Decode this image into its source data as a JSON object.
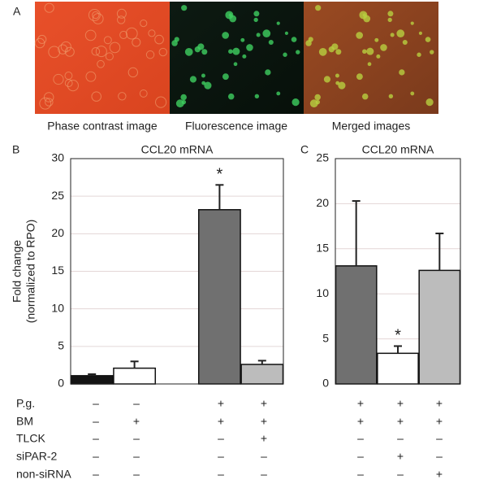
{
  "panel_a": {
    "label": "A",
    "captions": [
      "Phase contrast image",
      "Fluorescence image",
      "Merged images"
    ]
  },
  "condition_labels": [
    "P.g.",
    "BM",
    "TLCK",
    "siPAR-2",
    "non-siRNA"
  ],
  "chart_data": [
    {
      "type": "bar",
      "panel": "B",
      "title": "CCL20 mRNA",
      "ylabel": [
        "Fold change",
        "(normalized to RPO)"
      ],
      "categories": [
        null,
        null,
        null,
        null
      ],
      "values": [
        1.1,
        2.1,
        23.2,
        2.6
      ],
      "errors": [
        0.2,
        0.9,
        3.3,
        0.5
      ],
      "colors": [
        "#141414",
        "#ffffff",
        "#707070",
        "#bcbcbc"
      ],
      "ylim": [
        0,
        30
      ],
      "yticks": [
        0,
        5,
        10,
        15,
        20,
        25,
        30
      ],
      "grid": true,
      "annotations": [
        {
          "text": "*",
          "index": 2
        }
      ],
      "conditions": [
        [
          "–",
          "–",
          "+",
          "+"
        ],
        [
          "–",
          "+",
          "+",
          "+"
        ],
        [
          "–",
          "–",
          "–",
          "+"
        ],
        [
          "–",
          "–",
          "–",
          "–"
        ],
        [
          "–",
          "–",
          "–",
          "–"
        ]
      ]
    },
    {
      "type": "bar",
      "panel": "C",
      "title": "CCL20 mRNA",
      "categories": [
        null,
        null,
        null
      ],
      "values": [
        13.1,
        3.4,
        12.6
      ],
      "errors": [
        7.2,
        0.8,
        4.1
      ],
      "colors": [
        "#707070",
        "#ffffff",
        "#bcbcbc"
      ],
      "ylim": [
        0,
        25
      ],
      "yticks": [
        0,
        5,
        10,
        15,
        20,
        25
      ],
      "grid": true,
      "annotations": [
        {
          "text": "*",
          "index": 1
        }
      ],
      "conditions": [
        [
          "+",
          "+",
          "+"
        ],
        [
          "+",
          "+",
          "+"
        ],
        [
          "–",
          "–",
          "–"
        ],
        [
          "–",
          "+",
          "–"
        ],
        [
          "–",
          "–",
          "+"
        ]
      ]
    }
  ]
}
